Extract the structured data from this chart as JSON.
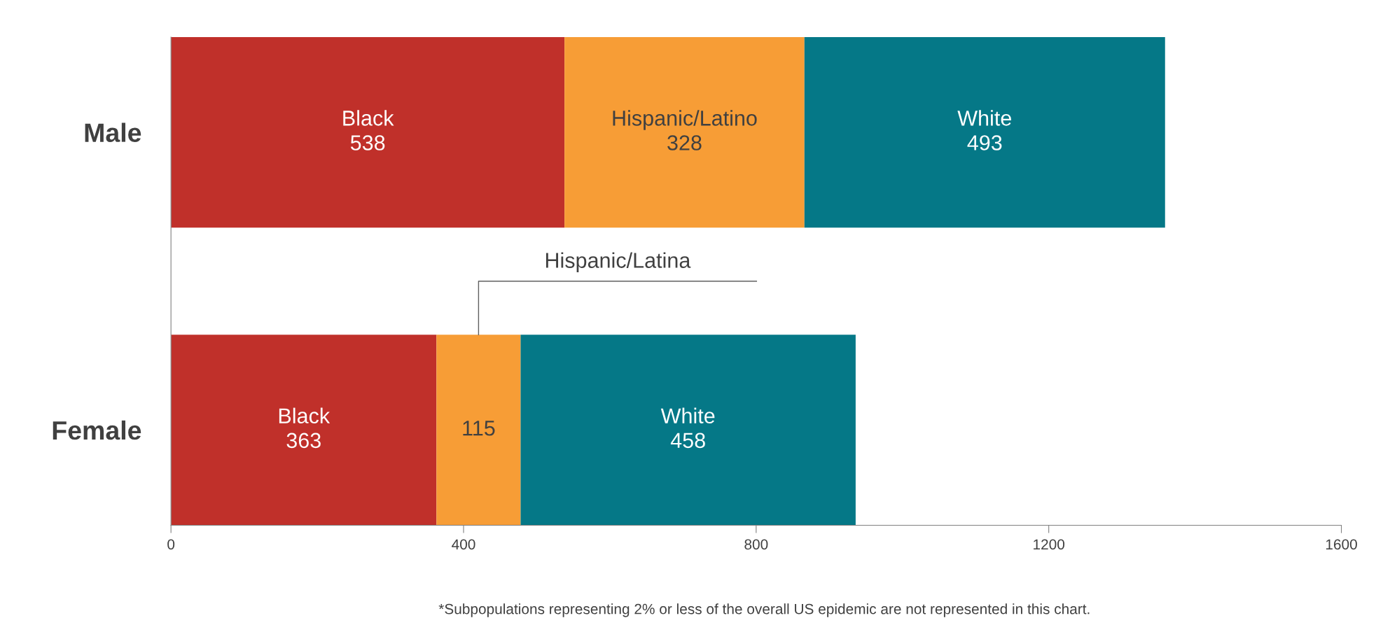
{
  "chart_data": {
    "type": "bar",
    "orientation": "horizontal",
    "stacked": true,
    "categories": [
      "Male",
      "Female"
    ],
    "series": [
      {
        "color": "#c0302a",
        "values": [
          538,
          363
        ],
        "value_labels": [
          "Black\n538",
          "Black\n363"
        ]
      },
      {
        "color": "#f79d36",
        "values": [
          328,
          115
        ],
        "value_labels": [
          "Hispanic/Latino\n328",
          "115"
        ]
      },
      {
        "color": "#057887",
        "values": [
          493,
          458
        ],
        "value_labels": [
          "White\n493",
          "White\n458"
        ]
      }
    ],
    "xlim": [
      0,
      1600
    ],
    "xticks": [
      0,
      400,
      800,
      1200,
      1600
    ],
    "grid": false,
    "legend": false,
    "annotations": [
      "Hispanic/Latina",
      "*Subpopulations representing 2% or less of the overall US epidemic are not represented in this chart."
    ]
  }
}
